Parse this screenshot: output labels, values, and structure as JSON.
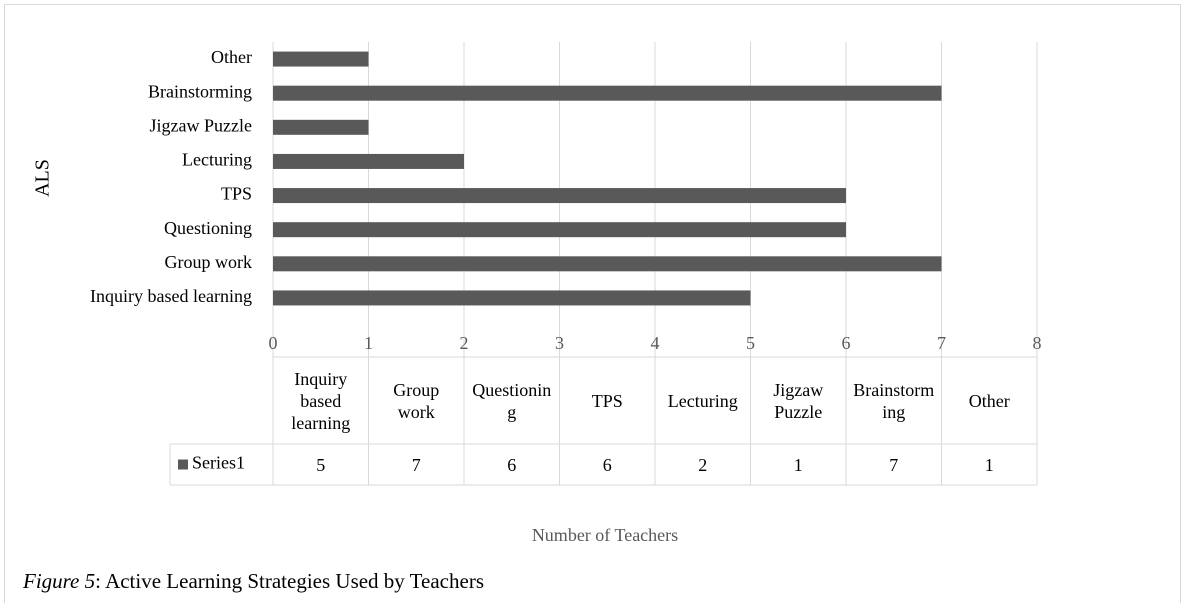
{
  "chart_data": {
    "type": "bar",
    "orientation": "horizontal",
    "y_label": "ALS",
    "x_label": "Number of Teachers",
    "categories": [
      "Inquiry based learning",
      "Group work",
      "Questioning",
      "TPS",
      "Lecturing",
      "Jigzaw Puzzle",
      "Brainstorming",
      "Other"
    ],
    "series": [
      {
        "name": "Series1",
        "color": "#595959",
        "values": [
          5,
          7,
          6,
          6,
          2,
          1,
          7,
          1
        ]
      }
    ],
    "xlim": [
      0,
      8
    ],
    "xticks": [
      0,
      1,
      2,
      3,
      4,
      5,
      6,
      7,
      8
    ],
    "grid": true,
    "data_table": true
  },
  "caption": {
    "label": "Figure 5",
    "text": ": Active Learning Strategies Used by Teachers"
  }
}
